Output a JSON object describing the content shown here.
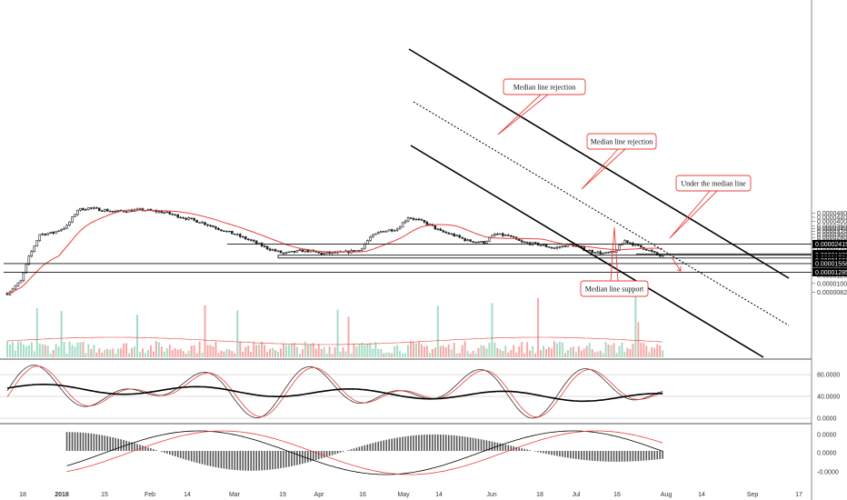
{
  "chart_data": {
    "type": "candlestick",
    "price_axis": {
      "ticks": [
        "0.00004800",
        "0.00004400",
        "0.00004000",
        "0.00003600",
        "0.00003400",
        "0.00003200",
        "0.00003000",
        "0.00002800",
        "0.00002600",
        "0.00002200",
        "0.00002000",
        "0.00001400",
        "0.00001200",
        "0.00001000",
        "0.00000820"
      ],
      "scale": "log"
    },
    "price_tags": [
      {
        "label": "0.00002415",
        "value": 2.415e-05
      },
      {
        "label": "0.00001935",
        "value": 1.935e-05
      },
      {
        "label": "0.00001883",
        "value": 1.883e-05
      },
      {
        "label": "0.00001766",
        "value": 1.766e-05
      },
      {
        "label": "0.00001666",
        "value": 1.666e-05
      },
      {
        "label": "0.00001558",
        "value": 1.558e-05
      },
      {
        "label": "0.00001285",
        "value": 1.285e-05
      }
    ],
    "stoch_axis": {
      "ticks": [
        "80.0000",
        "40.0000",
        "0.0000"
      ]
    },
    "macd_axis": {
      "ticks": [
        "0.0000",
        "0.0000",
        "-0.0000"
      ]
    },
    "x_axis": {
      "labels": [
        {
          "text": "18",
          "bold": false
        },
        {
          "text": "2018",
          "bold": true
        },
        {
          "text": "15",
          "bold": false
        },
        {
          "text": "Feb",
          "bold": false
        },
        {
          "text": "14",
          "bold": false
        },
        {
          "text": "Mar",
          "bold": false
        },
        {
          "text": "19",
          "bold": false
        },
        {
          "text": "Apr",
          "bold": false
        },
        {
          "text": "16",
          "bold": false
        },
        {
          "text": "May",
          "bold": false
        },
        {
          "text": "14",
          "bold": false
        },
        {
          "text": "Jun",
          "bold": false
        },
        {
          "text": "18",
          "bold": false
        },
        {
          "text": "Jul",
          "bold": false
        },
        {
          "text": "16",
          "bold": false
        },
        {
          "text": "Aug",
          "bold": false
        },
        {
          "text": "14",
          "bold": false
        },
        {
          "text": "Sep",
          "bold": false
        },
        {
          "text": "17",
          "bold": false
        }
      ]
    },
    "annotations": [
      {
        "text": "Median line rejection"
      },
      {
        "text": "Median line rejection"
      },
      {
        "text": "Under the median line"
      },
      {
        "text": "Median line support"
      }
    ],
    "colors": {
      "candle": "#222222",
      "ma": "#e8413b",
      "volume_up": "#a7dcc6",
      "volume_down": "#f4a9a6",
      "channel": "#000000",
      "tag_bg": "#000000"
    }
  }
}
